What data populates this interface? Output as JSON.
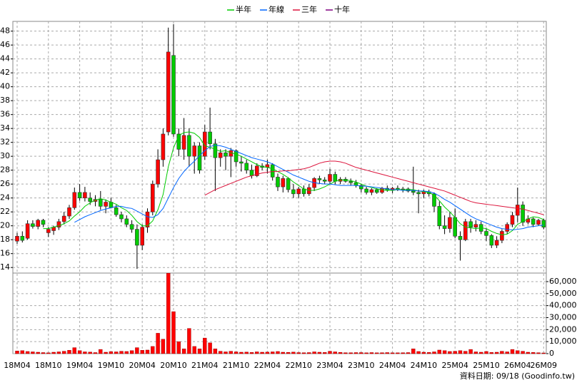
{
  "chart_data": {
    "type": "candlestick",
    "source_note": "資料日期: 09/18 (Goodinfo.tw)",
    "x": [
      "18M04",
      null,
      null,
      null,
      null,
      null,
      "18M10",
      null,
      null,
      null,
      null,
      null,
      "19M04",
      null,
      null,
      null,
      null,
      null,
      "19M10",
      null,
      null,
      null,
      null,
      null,
      "20M04",
      null,
      null,
      null,
      null,
      null,
      "20M10",
      null,
      null,
      null,
      null,
      null,
      "21M04",
      null,
      null,
      null,
      null,
      null,
      "21M10",
      null,
      null,
      null,
      null,
      null,
      "22M04",
      null,
      null,
      null,
      null,
      null,
      "22M10",
      null,
      null,
      null,
      null,
      null,
      "23M04",
      null,
      null,
      null,
      null,
      null,
      "23M10",
      null,
      null,
      null,
      null,
      null,
      "24M04",
      null,
      null,
      null,
      null,
      null,
      "24M10",
      null,
      null,
      null,
      null,
      null,
      "25M04",
      null,
      null,
      null,
      null,
      null,
      "25M10",
      null,
      null,
      null,
      null,
      null,
      "26M04",
      null,
      null,
      null,
      null,
      "26M09"
    ],
    "open": [
      17.8,
      18.5,
      18.2,
      20.3,
      19.9,
      20.8,
      19,
      19.3,
      19.8,
      20.6,
      21.4,
      22.6,
      24.8,
      24,
      24,
      23.5,
      23.8,
      22.8,
      23.4,
      22.6,
      21.6,
      21,
      20.2,
      19.5,
      17.2,
      19.8,
      22,
      26,
      29.5,
      33.5,
      44.5,
      33.2,
      31,
      33,
      30,
      31.5,
      30,
      33.5,
      31.8,
      29.8,
      30.5,
      30,
      30.8,
      29.2,
      29,
      28,
      27.2,
      28.6,
      28.4,
      28.8,
      27,
      25.6,
      26.8,
      25.2,
      24.6,
      25.3,
      24.6,
      25.5,
      26.8,
      26.6,
      26.4,
      27.4,
      26.4,
      26.7,
      26.4,
      26.2,
      25.8,
      25.3,
      24.8,
      25.2,
      24.8,
      25.4,
      25.1,
      25.4,
      25.2,
      25.3,
      25,
      24.8,
      24.6,
      24.9,
      24.6,
      22.8,
      20,
      19.6,
      21.2,
      18.5,
      18,
      20.6,
      19.8,
      20.2,
      19.2,
      18.6,
      17.2,
      17.9,
      19.2,
      20.2,
      21.5,
      23,
      20.5,
      21,
      20.2,
      20.8
    ],
    "high": [
      19,
      19.2,
      20.8,
      20.8,
      21,
      21,
      19.8,
      20,
      21,
      22,
      23,
      25.5,
      26,
      25.6,
      24.8,
      24.4,
      25,
      23.8,
      24,
      23,
      22,
      21.5,
      20.8,
      20.2,
      20.2,
      22.5,
      26.5,
      31,
      34,
      48.5,
      49,
      34,
      35.5,
      34,
      32,
      32,
      34.5,
      37,
      32.5,
      31,
      31,
      31.2,
      31,
      30,
      29.5,
      28.8,
      29,
      29,
      29.5,
      29,
      27.5,
      27.2,
      27,
      26,
      25.6,
      25.8,
      26,
      27,
      27.2,
      27,
      28.2,
      27.8,
      27,
      27,
      26.8,
      26.6,
      26,
      25.6,
      25.4,
      25.4,
      25.6,
      25.8,
      25.6,
      25.8,
      25.6,
      25.5,
      28.5,
      25.2,
      25.2,
      25.2,
      24.8,
      23.5,
      21.5,
      22,
      22.5,
      19.2,
      21,
      21,
      20.8,
      20.6,
      19.6,
      18.8,
      18.5,
      19.5,
      20.5,
      22,
      25.5,
      23.5,
      21.5,
      21.2,
      21,
      21
    ],
    "low": [
      17.4,
      17.6,
      18,
      19.6,
      19.5,
      19.8,
      18.4,
      18.7,
      19.4,
      20.2,
      21,
      22.3,
      23.6,
      23.5,
      23,
      22.8,
      22.3,
      21.8,
      22.5,
      21.3,
      20.5,
      19.8,
      19,
      13.8,
      16.5,
      19,
      21.5,
      25.5,
      28.5,
      33,
      32.8,
      30,
      29.5,
      28.5,
      27.5,
      27.5,
      29.5,
      31,
      25,
      28.5,
      28,
      27,
      28.5,
      27.8,
      27.5,
      26.8,
      27,
      28,
      27.5,
      26.5,
      25,
      24.8,
      24.8,
      24,
      24,
      24.2,
      24.3,
      25,
      26,
      26,
      26,
      26,
      26,
      26.2,
      25.8,
      25.5,
      24.8,
      24.5,
      24.4,
      24.6,
      24.6,
      24.9,
      24.7,
      25,
      24.8,
      24.8,
      24.4,
      21.8,
      24,
      24.2,
      22,
      19.5,
      18.8,
      19,
      18.2,
      15,
      17.8,
      19,
      19.2,
      18.8,
      17.8,
      16.8,
      16.8,
      17.5,
      18.8,
      19.8,
      20.5,
      20,
      20.2,
      19.8,
      20,
      19.5
    ],
    "close": [
      18.5,
      17.9,
      20.3,
      19.9,
      20.8,
      20.2,
      19.5,
      19.8,
      20.6,
      21.4,
      22.6,
      24.8,
      24,
      24.8,
      23.5,
      23.8,
      22.8,
      23.4,
      22.6,
      21.6,
      21,
      20.2,
      19.5,
      17.2,
      19.8,
      22,
      26,
      29.5,
      33.2,
      45,
      33.2,
      31,
      33,
      30,
      31.5,
      28,
      33.5,
      31.8,
      29.8,
      30.5,
      30,
      30.8,
      29.2,
      29,
      28,
      27.2,
      28.6,
      28.4,
      28.8,
      27,
      25.6,
      26.8,
      25.2,
      24.6,
      25.3,
      24.6,
      25.5,
      26.8,
      26.6,
      26.4,
      27.4,
      26.4,
      26.7,
      26.4,
      26.2,
      25.8,
      25.3,
      24.8,
      25.2,
      24.8,
      25.4,
      25.1,
      25.4,
      25.2,
      25.3,
      25,
      24.8,
      24.6,
      24.9,
      24.6,
      22.8,
      20,
      19.6,
      21.2,
      18.5,
      18,
      20.6,
      19.8,
      20.2,
      19.2,
      18.6,
      17.2,
      17.9,
      19.2,
      20.2,
      21.5,
      23,
      20.5,
      21,
      20.2,
      20.8,
      19.8
    ],
    "volume": [
      2200,
      2500,
      1800,
      1500,
      1200,
      900,
      700,
      1200,
      1500,
      2000,
      2800,
      5000,
      2500,
      1500,
      1300,
      900,
      3500,
      1200,
      1700,
      1500,
      2000,
      1800,
      2500,
      5000,
      2800,
      3000,
      6000,
      17000,
      12000,
      67000,
      35000,
      10000,
      4000,
      21000,
      6000,
      4000,
      13000,
      9000,
      4000,
      2000,
      1500,
      2000,
      1500,
      1200,
      1300,
      1000,
      1500,
      1200,
      1300,
      1500,
      1800,
      1200,
      1100,
      1300,
      900,
      800,
      900,
      1500,
      1200,
      1000,
      2000,
      1500,
      1100,
      800,
      800,
      900,
      900,
      700,
      900,
      700,
      800,
      900,
      700,
      700,
      800,
      900,
      4000,
      1800,
      1200,
      1000,
      1500,
      3000,
      2500,
      1800,
      2000,
      2500,
      2000,
      3500,
      1500,
      1200,
      1800,
      1000,
      1200,
      2000,
      1500,
      3500,
      2500,
      2000,
      1200,
      1000,
      800,
      600
    ],
    "up_color": "#ff0000",
    "down_color": "#00cc00",
    "volume_color": "#ff0000",
    "ylim": [
      13.2,
      49.4
    ],
    "yticks": [
      14,
      16,
      18,
      20,
      22,
      24,
      26,
      28,
      30,
      32,
      34,
      36,
      38,
      40,
      42,
      44,
      46,
      48
    ],
    "y2lim": [
      0,
      68300
    ],
    "y2ticks": [
      0,
      {
        "value": 10000,
        "label": "10,000"
      },
      {
        "value": 20000,
        "label": "20,000"
      },
      {
        "value": 30000,
        "label": "30,000"
      },
      {
        "value": 40000,
        "label": "40,000"
      },
      {
        "value": 50000,
        "label": "50,000"
      },
      {
        "value": 60000,
        "label": "60,000"
      }
    ],
    "grid": true,
    "lines": [
      {
        "name": "半年",
        "color": "#00cc00",
        "values": [
          null,
          null,
          null,
          null,
          null,
          19.6,
          19.6,
          19.8,
          20,
          20.3,
          20.7,
          21.4,
          22,
          22.8,
          23.3,
          23.7,
          23.9,
          23.7,
          23.4,
          23.1,
          22.6,
          22.2,
          21.5,
          20.6,
          20,
          20,
          20.7,
          22.3,
          24.5,
          28.5,
          31.2,
          33,
          33.4,
          33.5,
          33.3,
          32.7,
          31.5,
          31.3,
          31,
          30.7,
          30.8,
          30.5,
          30.3,
          30,
          29.6,
          29.2,
          28.8,
          28.5,
          28.4,
          28.2,
          27.8,
          27.4,
          26.9,
          26.3,
          25.8,
          25.3,
          25.1,
          25.1,
          25.3,
          25.6,
          26,
          26.4,
          26.6,
          26.6,
          26.5,
          26.3,
          26,
          25.7,
          25.5,
          25.3,
          25.2,
          25.1,
          25.1,
          25.2,
          25.2,
          25.2,
          25.2,
          25,
          24.9,
          24.8,
          24.4,
          23.6,
          22.7,
          22,
          21.2,
          20.3,
          19.8,
          19.7,
          19.6,
          19.7,
          19.6,
          19.2,
          18.9,
          18.7,
          18.8,
          19.3,
          20.2,
          20.6,
          21,
          21.3,
          21.2,
          20.9
        ]
      },
      {
        "name": "年線",
        "color": "#0066ff",
        "values": [
          null,
          null,
          null,
          null,
          null,
          null,
          null,
          null,
          null,
          null,
          null,
          20.5,
          20.9,
          21.3,
          21.6,
          21.9,
          22.2,
          22.4,
          22.6,
          22.8,
          22.8,
          22.6,
          22.5,
          22.1,
          21.7,
          21.3,
          21.2,
          21.6,
          22.5,
          24,
          25.5,
          26.8,
          27.8,
          28.6,
          29.3,
          30.1,
          30.8,
          31.4,
          31.6,
          31.5,
          31.3,
          31,
          30.7,
          30.4,
          30.1,
          29.8,
          29.6,
          29.4,
          29.2,
          28.9,
          28.5,
          28.1,
          27.7,
          27.3,
          27,
          26.7,
          26.4,
          26.2,
          26.1,
          26,
          26,
          25.9,
          25.8,
          25.8,
          25.8,
          25.8,
          25.7,
          25.7,
          25.6,
          25.5,
          25.4,
          25.3,
          25.2,
          25.2,
          25.1,
          25.1,
          25.1,
          25,
          25,
          24.9,
          24.7,
          24.3,
          23.8,
          23.4,
          22.9,
          22.4,
          21.9,
          21.4,
          21,
          20.7,
          20.4,
          20.1,
          19.8,
          19.6,
          19.5,
          19.4,
          19.5,
          19.6,
          19.8,
          19.9,
          20,
          20.1
        ]
      },
      {
        "name": "三年",
        "color": "#dc143c",
        "values": [
          null,
          null,
          null,
          null,
          null,
          null,
          null,
          null,
          null,
          null,
          null,
          null,
          null,
          null,
          null,
          null,
          null,
          null,
          null,
          null,
          null,
          null,
          null,
          null,
          null,
          null,
          null,
          null,
          null,
          null,
          null,
          null,
          null,
          null,
          null,
          null,
          24.4,
          24.8,
          25.2,
          25.5,
          25.8,
          26.1,
          26.4,
          26.7,
          27,
          27.2,
          27.4,
          27.6,
          27.7,
          27.8,
          27.8,
          27.9,
          27.9,
          28,
          28.1,
          28.2,
          28.4,
          28.7,
          29,
          29.2,
          29.3,
          29.3,
          29.2,
          29,
          28.7,
          28.4,
          28.2,
          28,
          27.8,
          27.6,
          27.4,
          27.2,
          27,
          26.8,
          26.6,
          26.4,
          26.2,
          26,
          25.8,
          25.6,
          25.4,
          25.2,
          25,
          24.7,
          24.4,
          24.1,
          23.8,
          23.5,
          23.3,
          23.2,
          23.1,
          23,
          22.9,
          22.8,
          22.7,
          22.6,
          22.5,
          22.4,
          22.2,
          22,
          21.8,
          21.6
        ]
      },
      {
        "name": "十年",
        "color": "#800080",
        "values": [
          null,
          null,
          null,
          null,
          null,
          null,
          null,
          null,
          null,
          null,
          null,
          null,
          null,
          null,
          null,
          null,
          null,
          null,
          null,
          null,
          null,
          null,
          null,
          null,
          null,
          null,
          null,
          null,
          null,
          null,
          null,
          null,
          null,
          null,
          null,
          null,
          null,
          null,
          null,
          null,
          null,
          null,
          null,
          null,
          null,
          null,
          null,
          null,
          null,
          null,
          null,
          null,
          null,
          null,
          null,
          null,
          null,
          null,
          null,
          null,
          null,
          null,
          null,
          null,
          null,
          null,
          null,
          null,
          null,
          null,
          null,
          null,
          null,
          null,
          null,
          null,
          null,
          null,
          null,
          null,
          null,
          null,
          null,
          null,
          null,
          null,
          null,
          null,
          null,
          null,
          null,
          null,
          null,
          null,
          null,
          null,
          null,
          null,
          null,
          null,
          null,
          null
        ]
      }
    ]
  }
}
